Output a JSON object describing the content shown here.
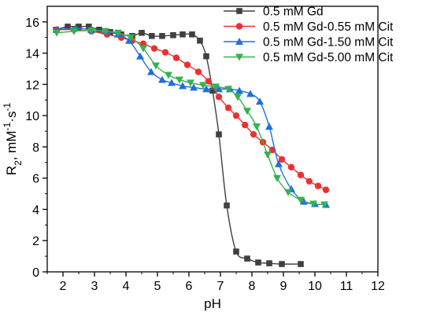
{
  "chart_data": {
    "type": "line",
    "xlabel": "pH",
    "ylabel": {
      "main": "R",
      "sub": "2",
      "unit": ", mM",
      "sup1": "-1",
      "mid": "·s",
      "sup2": "-1"
    },
    "xlim": [
      1.5,
      12
    ],
    "ylim": [
      0,
      17
    ],
    "xticks": [
      2,
      3,
      4,
      5,
      6,
      7,
      8,
      9,
      10,
      11,
      12
    ],
    "yticks": [
      0,
      2,
      4,
      6,
      8,
      10,
      12,
      14,
      16
    ],
    "legend_position": "top-right",
    "series": [
      {
        "name": "0.5 mM Gd",
        "color": "#404040",
        "marker": "square",
        "x": [
          1.78,
          2.15,
          2.5,
          2.82,
          3.15,
          3.5,
          3.85,
          4.2,
          4.5,
          4.82,
          5.15,
          5.5,
          5.8,
          6.1,
          6.35,
          6.55,
          6.75,
          6.95,
          7.2,
          7.5,
          7.85,
          8.2,
          8.55,
          8.95,
          9.55
        ],
        "y": [
          15.5,
          15.7,
          15.7,
          15.7,
          15.5,
          15.35,
          15.2,
          15.1,
          15.3,
          15.1,
          15.1,
          15.15,
          15.2,
          15.2,
          14.8,
          13.8,
          11.6,
          8.8,
          4.25,
          1.3,
          0.85,
          0.6,
          0.55,
          0.5,
          0.5
        ]
      },
      {
        "name": "0.5 mM Gd-0.55 mM Cit",
        "color": "#ee3030",
        "marker": "circle",
        "x": [
          1.8,
          2.35,
          2.9,
          3.4,
          3.85,
          4.2,
          4.55,
          4.9,
          5.25,
          5.6,
          5.95,
          6.3,
          6.62,
          6.95,
          7.25,
          7.5,
          7.78,
          8.05,
          8.35,
          8.65,
          8.95,
          9.25,
          9.55,
          9.82,
          10.1,
          10.35
        ],
        "y": [
          15.5,
          15.5,
          15.4,
          15.2,
          15.0,
          14.8,
          14.6,
          14.3,
          14.05,
          13.7,
          13.25,
          12.8,
          12.2,
          11.2,
          10.5,
          10.0,
          9.4,
          8.8,
          8.3,
          7.8,
          7.2,
          6.7,
          6.2,
          5.8,
          5.5,
          5.25
        ]
      },
      {
        "name": "0.5 mM Gd-1.50 mM Cit",
        "color": "#1f6fde",
        "marker": "triangle-up",
        "x": [
          1.8,
          2.4,
          2.9,
          3.35,
          3.75,
          4.1,
          4.45,
          4.8,
          5.15,
          5.45,
          5.8,
          6.15,
          6.55,
          6.95,
          7.3,
          7.6,
          7.95,
          8.25,
          8.55,
          8.85,
          9.25,
          9.65,
          10.0,
          10.35
        ],
        "y": [
          15.5,
          15.6,
          15.5,
          15.4,
          15.2,
          14.8,
          13.8,
          12.8,
          12.3,
          12.1,
          11.9,
          11.8,
          11.7,
          11.7,
          11.7,
          11.6,
          11.4,
          10.9,
          9.3,
          6.9,
          5.3,
          4.5,
          4.35,
          4.3
        ]
      },
      {
        "name": "0.5 mM Gd-5.00 mM Cit",
        "color": "#35b24f",
        "marker": "triangle-down",
        "x": [
          1.8,
          2.35,
          2.9,
          3.35,
          3.75,
          4.15,
          4.55,
          4.95,
          5.35,
          5.7,
          6.05,
          6.45,
          6.85,
          7.25,
          7.55,
          7.85,
          8.15,
          8.5,
          8.8,
          9.15,
          9.55,
          9.95,
          10.3
        ],
        "y": [
          15.3,
          15.4,
          15.45,
          15.4,
          15.3,
          15.0,
          14.3,
          13.2,
          12.6,
          12.3,
          12.1,
          11.95,
          11.85,
          11.7,
          11.2,
          10.3,
          9.3,
          7.5,
          6.0,
          5.1,
          4.6,
          4.35,
          4.3
        ]
      }
    ]
  }
}
